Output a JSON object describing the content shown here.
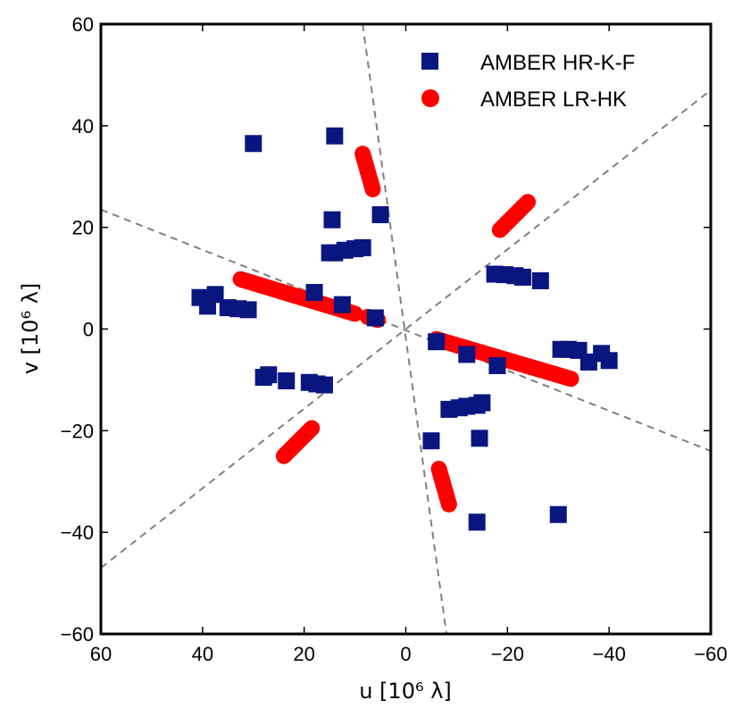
{
  "chart_data": {
    "type": "scatter",
    "xlabel": "u  [10⁶ λ]",
    "ylabel": "v  [10⁶ λ]",
    "xlim": [
      60,
      -60
    ],
    "ylim": [
      -60,
      60
    ],
    "xticks": [
      60,
      40,
      20,
      0,
      -20,
      -40,
      -60
    ],
    "yticks": [
      60,
      40,
      20,
      0,
      -20,
      -40,
      -60
    ],
    "xtick_labels": [
      "60",
      "40",
      "20",
      "0",
      "−20",
      "−40",
      "−60"
    ],
    "ytick_labels": [
      "60",
      "40",
      "20",
      "0",
      "−20",
      "−40",
      "−60"
    ],
    "grid": false,
    "legend_position": "top-right",
    "reference_lines": [
      {
        "x1": 60,
        "y1": -47,
        "x2": -60,
        "y2": 47
      },
      {
        "x1": 60,
        "y1": 23.5,
        "x2": -60,
        "y2": -24
      },
      {
        "x1": 8.5,
        "y1": 60,
        "x2": -8,
        "y2": -60
      }
    ],
    "series": [
      {
        "name": "AMBER HR-K-F",
        "marker": "square",
        "color": "#0a1680",
        "points": [
          [
            30,
            36.5
          ],
          [
            14,
            38
          ],
          [
            14.5,
            21.5
          ],
          [
            5,
            22.5
          ],
          [
            15,
            15
          ],
          [
            14,
            15
          ],
          [
            12,
            15.5
          ],
          [
            10,
            15.8
          ],
          [
            8.5,
            16
          ],
          [
            40.5,
            6.2
          ],
          [
            39,
            4.5
          ],
          [
            37.5,
            6.8
          ],
          [
            35,
            4.2
          ],
          [
            33,
            4
          ],
          [
            31,
            3.8
          ],
          [
            18,
            7.2
          ],
          [
            12.5,
            4.8
          ],
          [
            6,
            2.2
          ],
          [
            28,
            -9.5
          ],
          [
            27,
            -9
          ],
          [
            23.5,
            -10.2
          ],
          [
            19,
            -10.5
          ],
          [
            17.5,
            -10.8
          ],
          [
            16,
            -11
          ],
          [
            -17.5,
            10.8
          ],
          [
            -19.5,
            10.7
          ],
          [
            -21.5,
            10.5
          ],
          [
            -23,
            10.2
          ],
          [
            -26.5,
            9.5
          ],
          [
            -6,
            -2.5
          ],
          [
            -12,
            -5
          ],
          [
            -18,
            -7.2
          ],
          [
            -30.5,
            -4
          ],
          [
            -32,
            -4
          ],
          [
            -34,
            -4.2
          ],
          [
            -36,
            -6.5
          ],
          [
            -38.5,
            -4.8
          ],
          [
            -40,
            -6.2
          ],
          [
            -8.5,
            -15.8
          ],
          [
            -10.5,
            -15.5
          ],
          [
            -12,
            -15.2
          ],
          [
            -14,
            -15
          ],
          [
            -15,
            -14.5
          ],
          [
            -5,
            -22
          ],
          [
            -14.5,
            -21.5
          ],
          [
            -14,
            -38
          ],
          [
            -30,
            -36.5
          ]
        ]
      },
      {
        "name": "AMBER LR-HK",
        "marker": "circle",
        "color": "#ff0000",
        "tracks": [
          [
            [
              32.5,
              9.8
            ],
            [
              10,
              3
            ]
          ],
          [
            [
              8.5,
              34.5
            ],
            [
              6.5,
              27.5
            ]
          ],
          [
            [
              -18.5,
              19.5
            ],
            [
              -24,
              25
            ]
          ],
          [
            [
              7.5,
              2.4
            ],
            [
              5.5,
              1.8
            ]
          ],
          [
            [
              -6,
              -2
            ],
            [
              -32.5,
              -9.8
            ]
          ],
          [
            [
              -6.5,
              -27.5
            ],
            [
              -8.5,
              -34.5
            ]
          ],
          [
            [
              18.5,
              -19.5
            ],
            [
              24,
              -25
            ]
          ]
        ]
      }
    ]
  }
}
